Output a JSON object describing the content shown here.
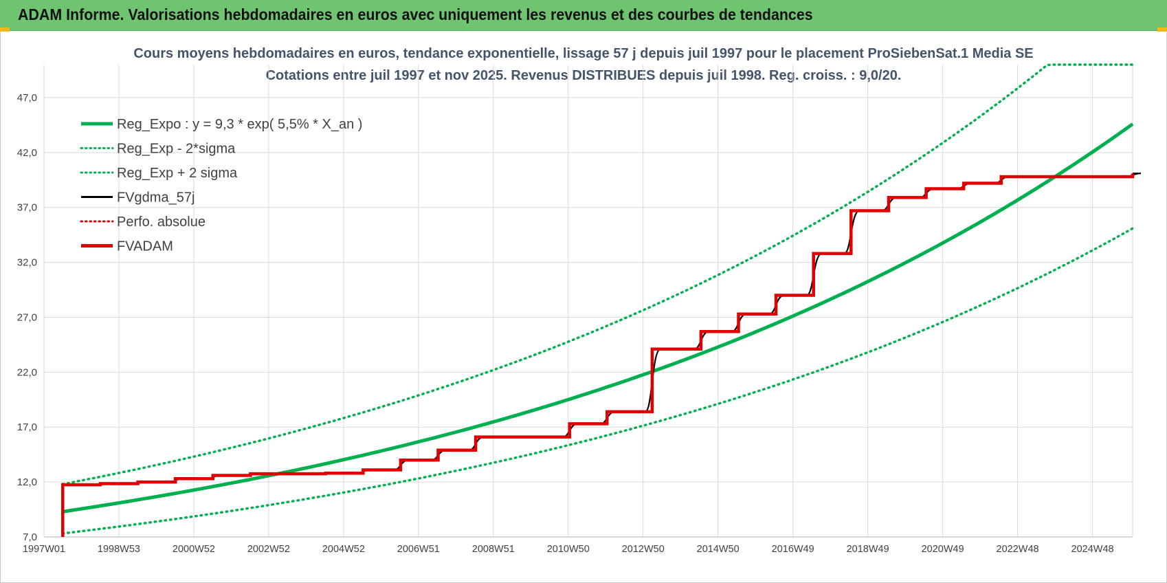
{
  "header": {
    "title": "ADAM Informe. Valorisations hebdomadaires en euros avec uniquement les revenus et des courbes de tendances"
  },
  "chart_data": {
    "type": "line",
    "title": "Cours moyens hebdomadaires en euros, tendance exponentielle, lissage 57 j depuis juil 1997 pour le placement ProSiebenSat.1 Media SE",
    "subtitle": "Cotations entre juil 1997 et nov 2025. Revenus DISTRIBUES depuis juil 1998. Reg. croiss. : 9,0/20.",
    "x_tick_labels": [
      "1997W01",
      "1998W53",
      "2000W52",
      "2002W52",
      "2004W52",
      "2006W51",
      "2008W51",
      "2010W50",
      "2012W50",
      "2014W50",
      "2016W49",
      "2018W49",
      "2020W49",
      "2022W48",
      "2024W48"
    ],
    "y_tick_labels": [
      "7,0",
      "12,0",
      "17,0",
      "22,0",
      "27,0",
      "32,0",
      "37,0",
      "42,0",
      "47,0"
    ],
    "ylim": [
      7,
      50
    ],
    "x_range_years": [
      1997.0,
      2026.0
    ],
    "grid": true,
    "legend_position": "top-left",
    "legend": [
      {
        "label": "Reg_Expo : y = 9,3 * exp( 5,5% *  X_an )",
        "color": "#00b050",
        "style": "solid-thick"
      },
      {
        "label": "Reg_Exp - 2*sigma",
        "color": "#00b050",
        "style": "dotted"
      },
      {
        "label": "Reg_Exp + 2 sigma",
        "color": "#00b050",
        "style": "dotted"
      },
      {
        "label": "FVgdma_57j",
        "color": "#000000",
        "style": "solid"
      },
      {
        "label": "Perfo. absolue",
        "color": "#e00000",
        "style": "dotted"
      },
      {
        "label": "FVADAM",
        "color": "#e00000",
        "style": "solid-thick"
      }
    ],
    "regression": {
      "a": 9.3,
      "rate": 0.055,
      "x0": 1997.5,
      "x1": 2026.0,
      "band_low_factor": 0.787,
      "band_high_factor": 1.27
    },
    "series": [
      {
        "name": "FVADAM",
        "steps": [
          [
            1997.5,
            6.9
          ],
          [
            1997.5,
            11.75
          ],
          [
            1998.5,
            11.85
          ],
          [
            1999.5,
            12.0
          ],
          [
            2000.5,
            12.3
          ],
          [
            2001.5,
            12.6
          ],
          [
            2002.5,
            12.75
          ],
          [
            2004.5,
            12.8
          ],
          [
            2005.5,
            13.1
          ],
          [
            2006.5,
            14.0
          ],
          [
            2007.5,
            14.9
          ],
          [
            2008.5,
            16.1
          ],
          [
            2011.0,
            17.3
          ],
          [
            2012.0,
            18.4
          ],
          [
            2013.2,
            24.1
          ],
          [
            2014.5,
            25.7
          ],
          [
            2015.5,
            27.3
          ],
          [
            2016.5,
            29.0
          ],
          [
            2017.5,
            32.8
          ],
          [
            2018.5,
            36.7
          ],
          [
            2019.5,
            37.9
          ],
          [
            2020.5,
            38.7
          ],
          [
            2021.5,
            39.2
          ],
          [
            2022.5,
            39.8
          ],
          [
            2026.0,
            40.1
          ]
        ]
      }
    ]
  }
}
